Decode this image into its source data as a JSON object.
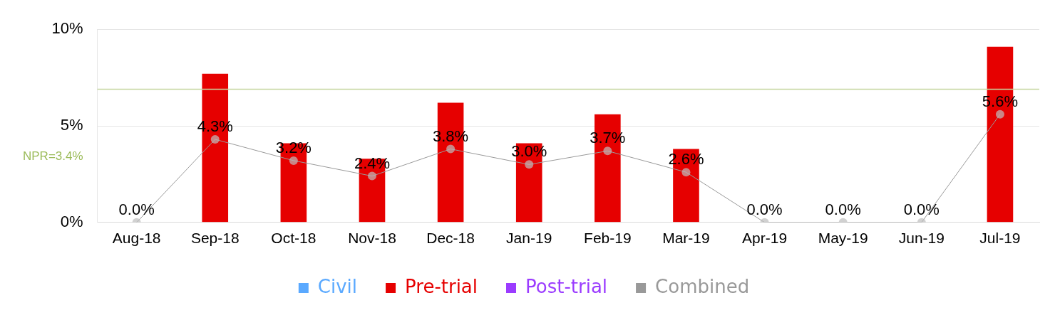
{
  "chart_data": {
    "type": "bar",
    "categories": [
      "Aug-18",
      "Sep-18",
      "Oct-18",
      "Nov-18",
      "Dec-18",
      "Jan-19",
      "Feb-19",
      "Mar-19",
      "Apr-19",
      "May-19",
      "Jun-19",
      "Jul-19"
    ],
    "series": [
      {
        "name": "Civil",
        "color": "#5aa9ff",
        "values": [
          null,
          null,
          null,
          null,
          null,
          null,
          null,
          null,
          null,
          null,
          null,
          null
        ]
      },
      {
        "name": "Pre-trial",
        "color": "#e60000",
        "values": [
          0,
          7.7,
          4.1,
          3.3,
          6.2,
          4.1,
          5.6,
          3.8,
          0,
          0,
          0,
          9.1
        ]
      },
      {
        "name": "Post-trial",
        "color": "#9b3cff",
        "values": [
          null,
          null,
          null,
          null,
          null,
          null,
          null,
          null,
          null,
          null,
          null,
          null
        ]
      },
      {
        "name": "Combined",
        "type": "line",
        "color": "#999999",
        "marker": "circle",
        "values": [
          0.0,
          4.3,
          3.2,
          2.4,
          3.8,
          3.0,
          3.7,
          2.6,
          0.0,
          0.0,
          0.0,
          5.6
        ],
        "value_labels": [
          "0.0%",
          "4.3%",
          "3.2%",
          "2.4%",
          "3.8%",
          "3.0%",
          "3.7%",
          "2.6%",
          "0.0%",
          "0.0%",
          "0.0%",
          "5.6%"
        ]
      }
    ],
    "ylim": [
      0,
      10
    ],
    "yticks": [
      {
        "value": 0,
        "label": "0%"
      },
      {
        "value": 3.4,
        "label": "NPR=3.4%"
      },
      {
        "value": 5,
        "label": "5%"
      },
      {
        "value": 10,
        "label": "10%"
      }
    ],
    "ref_lines": [
      {
        "axis": "y",
        "value": 6.9,
        "color": "#c5d6a0"
      }
    ],
    "grid": "y",
    "legend": "bottom"
  }
}
